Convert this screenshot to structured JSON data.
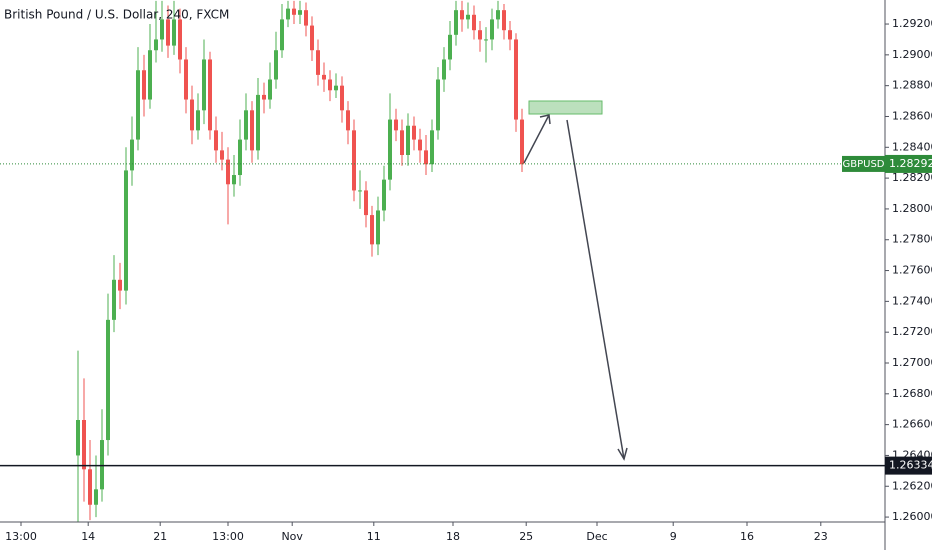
{
  "chart_data": {
    "type": "candlestick",
    "title": "British Pound / U.S. Dollar, 240, FXCM",
    "symbol": "GBPUSD",
    "up_color": "#4caf50",
    "down_color": "#ef5350",
    "grid": false,
    "xlim": [
      0,
      147.5
    ],
    "xticks": [
      {
        "value": 3.5,
        "label": "13:00"
      },
      {
        "value": 14.7,
        "label": "14"
      },
      {
        "value": 26.7,
        "label": "21"
      },
      {
        "value": 38,
        "label": "13:00"
      },
      {
        "value": 48.7,
        "label": "Nov"
      },
      {
        "value": 62.3,
        "label": "11"
      },
      {
        "value": 75.5,
        "label": "18"
      },
      {
        "value": 87.7,
        "label": "25"
      },
      {
        "value": 99.5,
        "label": "Dec"
      },
      {
        "value": 112.2,
        "label": "9"
      },
      {
        "value": 124.5,
        "label": "16"
      },
      {
        "value": 136.8,
        "label": "23"
      }
    ],
    "ylim": [
      1.25968,
      1.29356
    ],
    "yticks": [
      {
        "value": 1.26,
        "label": "1.26000"
      },
      {
        "value": 1.262,
        "label": "1.26200"
      },
      {
        "value": 1.264,
        "label": "1.26400"
      },
      {
        "value": 1.266,
        "label": "1.26600"
      },
      {
        "value": 1.268,
        "label": "1.26800"
      },
      {
        "value": 1.27,
        "label": "1.27000"
      },
      {
        "value": 1.272,
        "label": "1.27200"
      },
      {
        "value": 1.274,
        "label": "1.27400"
      },
      {
        "value": 1.276,
        "label": "1.27600"
      },
      {
        "value": 1.278,
        "label": "1.27800"
      },
      {
        "value": 1.28,
        "label": "1.28000"
      },
      {
        "value": 1.282,
        "label": "1.28200"
      },
      {
        "value": 1.284,
        "label": "1.28400"
      },
      {
        "value": 1.286,
        "label": "1.28600"
      },
      {
        "value": 1.288,
        "label": "1.28800"
      },
      {
        "value": 1.29,
        "label": "1.29000"
      },
      {
        "value": 1.292,
        "label": "1.29200"
      }
    ],
    "current_price": {
      "value": 1.28292,
      "color": "#2e8b3a"
    },
    "horizontal_line": {
      "value": 1.26334,
      "color": "#131722"
    },
    "x": [
      13,
      14,
      15,
      16,
      17,
      18,
      19,
      20,
      21,
      22,
      23,
      24,
      25,
      26,
      27,
      28,
      29,
      30,
      31,
      32,
      33,
      34,
      35,
      36,
      37,
      38,
      39,
      40,
      41,
      42,
      43,
      44,
      45,
      46,
      47,
      48,
      49,
      50,
      51,
      52,
      53,
      54,
      55,
      56,
      57,
      58,
      59,
      60,
      61,
      62,
      63,
      64,
      65,
      66,
      67,
      68,
      69,
      70,
      71,
      72,
      73,
      74,
      75,
      76,
      77,
      78,
      79,
      80,
      81,
      82,
      83,
      84,
      85,
      86,
      87
    ],
    "open": [
      1.264,
      1.2663,
      1.2631,
      1.2608,
      1.2618,
      1.265,
      1.2728,
      1.2754,
      1.2747,
      1.2825,
      1.2845,
      1.289,
      1.2871,
      1.2903,
      1.291,
      1.2923,
      1.2906,
      1.2923,
      1.2897,
      1.2871,
      1.2851,
      1.2864,
      1.2897,
      1.2851,
      1.2838,
      1.2832,
      1.2816,
      1.2822,
      1.2845,
      1.2864,
      1.2838,
      1.2874,
      1.2871,
      1.2884,
      1.2903,
      1.2923,
      1.293,
      1.2926,
      1.2929,
      1.2919,
      1.2903,
      1.2887,
      1.2884,
      1.2877,
      1.288,
      1.2864,
      1.2851,
      1.2812,
      1.2812,
      1.2796,
      1.2777,
      1.2799,
      1.2819,
      1.2858,
      1.2851,
      1.2835,
      1.2854,
      1.2845,
      1.2838,
      1.2829,
      1.2851,
      1.2884,
      1.2897,
      1.2913,
      1.2929,
      1.2923,
      1.2926,
      1.2916,
      1.291,
      1.291,
      1.2923,
      1.2929,
      1.2916,
      1.291,
      1.2858
    ],
    "high": [
      1.2708,
      1.269,
      1.265,
      1.264,
      1.267,
      1.2745,
      1.277,
      1.2765,
      1.284,
      1.286,
      1.2905,
      1.29,
      1.292,
      1.2935,
      1.2935,
      1.2932,
      1.2935,
      1.293,
      1.2905,
      1.288,
      1.2875,
      1.291,
      1.2902,
      1.286,
      1.285,
      1.284,
      1.2835,
      1.2858,
      1.2875,
      1.287,
      1.2885,
      1.2882,
      1.2895,
      1.2915,
      1.2933,
      1.2935,
      1.2935,
      1.2935,
      1.2934,
      1.2925,
      1.291,
      1.2895,
      1.289,
      1.2888,
      1.2886,
      1.287,
      1.2858,
      1.2825,
      1.2818,
      1.2802,
      1.2808,
      1.2828,
      1.2875,
      1.2865,
      1.2858,
      1.2862,
      1.286,
      1.2852,
      1.2848,
      1.2858,
      1.2892,
      1.2905,
      1.2922,
      1.2935,
      1.2935,
      1.2934,
      1.2932,
      1.2922,
      1.2918,
      1.293,
      1.2935,
      1.2933,
      1.2922,
      1.2914,
      1.2865
    ],
    "low": [
      1.2597,
      1.261,
      1.2598,
      1.26,
      1.261,
      1.264,
      1.272,
      1.2735,
      1.2738,
      1.2815,
      1.2838,
      1.286,
      1.2865,
      1.2895,
      1.2902,
      1.2898,
      1.29,
      1.2888,
      1.2862,
      1.2842,
      1.2845,
      1.2855,
      1.2845,
      1.283,
      1.2825,
      1.279,
      1.2808,
      1.2815,
      1.2838,
      1.283,
      1.2832,
      1.2862,
      1.2865,
      1.2878,
      1.2898,
      1.2918,
      1.292,
      1.292,
      1.2912,
      1.2896,
      1.288,
      1.2876,
      1.287,
      1.2872,
      1.2856,
      1.2842,
      1.2805,
      1.28,
      1.2788,
      1.2769,
      1.277,
      1.2792,
      1.2812,
      1.2844,
      1.2828,
      1.2828,
      1.2838,
      1.283,
      1.2822,
      1.2824,
      1.2845,
      1.2876,
      1.289,
      1.2906,
      1.2915,
      1.2917,
      1.291,
      1.2902,
      1.2895,
      1.2903,
      1.2917,
      1.291,
      1.2903,
      1.285,
      1.2824
    ],
    "close": [
      1.2663,
      1.2631,
      1.2608,
      1.2618,
      1.265,
      1.2728,
      1.2754,
      1.2747,
      1.2825,
      1.2845,
      1.289,
      1.2871,
      1.2903,
      1.291,
      1.2923,
      1.2906,
      1.2923,
      1.2897,
      1.2871,
      1.2851,
      1.2864,
      1.2897,
      1.2851,
      1.2838,
      1.2832,
      1.2816,
      1.2822,
      1.2845,
      1.2864,
      1.2838,
      1.2874,
      1.2871,
      1.2884,
      1.2903,
      1.2923,
      1.293,
      1.2926,
      1.2929,
      1.2919,
      1.2903,
      1.2887,
      1.2884,
      1.2877,
      1.288,
      1.2864,
      1.2851,
      1.2812,
      1.2812,
      1.2796,
      1.2777,
      1.2799,
      1.2819,
      1.2858,
      1.2851,
      1.2835,
      1.2854,
      1.2845,
      1.2838,
      1.2829,
      1.2851,
      1.2884,
      1.2897,
      1.2913,
      1.2929,
      1.2923,
      1.2926,
      1.2916,
      1.291,
      1.291,
      1.2923,
      1.2929,
      1.2916,
      1.291,
      1.2858,
      1.2829
    ]
  }
}
